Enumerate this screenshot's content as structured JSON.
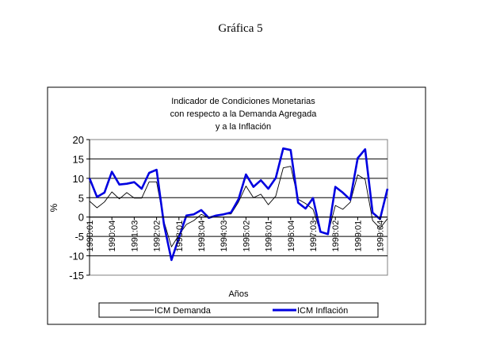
{
  "page_heading": "Gráfica 5",
  "chart_data": {
    "type": "line",
    "title": [
      "Indicador de Condiciones Monetarias",
      "con respecto a la Demanda Agregada",
      "y a la Inflación"
    ],
    "xlabel": "Años",
    "ylabel": "%",
    "ylim": [
      -15,
      20
    ],
    "yticks": [
      20,
      15,
      10,
      5,
      0,
      -5,
      -10,
      -15
    ],
    "grid": true,
    "legend_position": "bottom",
    "x_tick_labels": [
      "1990:01",
      "1990:04",
      "1991:03",
      "1992:02",
      "1993:01",
      "1993:04",
      "1994:03",
      "1995:02",
      "1996:01",
      "1996:04",
      "1997:03",
      "1998:02",
      "1999:01",
      "1999:04"
    ],
    "x_tick_every": 3,
    "n_points": 41,
    "series": [
      {
        "name": "ICM Demanda",
        "color": "#000000",
        "values": [
          4.1,
          2.4,
          3.9,
          6.5,
          4.7,
          6.3,
          4.9,
          4.9,
          9.1,
          9.1,
          -1.2,
          -7.7,
          -4.6,
          -1.9,
          -0.9,
          0.7,
          -0.2,
          0.5,
          0.8,
          0.8,
          3.9,
          8.0,
          5.0,
          5.9,
          3.2,
          5.4,
          12.7,
          13.1,
          4.6,
          3.5,
          2.0,
          -3.9,
          -4.3,
          3.0,
          2.0,
          3.8,
          10.9,
          9.7,
          -0.9,
          -2.9,
          -0.4
        ]
      },
      {
        "name": "ICM Inflación",
        "color": "#0000e0",
        "values": [
          10.0,
          5.2,
          6.3,
          11.7,
          8.4,
          8.6,
          9.0,
          7.3,
          11.4,
          12.2,
          -2.0,
          -11.1,
          -5.3,
          0.4,
          0.7,
          1.8,
          -0.2,
          0.4,
          0.7,
          1.2,
          4.6,
          11.0,
          7.8,
          9.5,
          7.3,
          10.1,
          17.7,
          17.3,
          3.7,
          2.2,
          4.9,
          -3.8,
          -4.4,
          7.8,
          6.3,
          4.5,
          15.2,
          17.5,
          1.1,
          -0.5,
          7.3
        ]
      }
    ]
  }
}
